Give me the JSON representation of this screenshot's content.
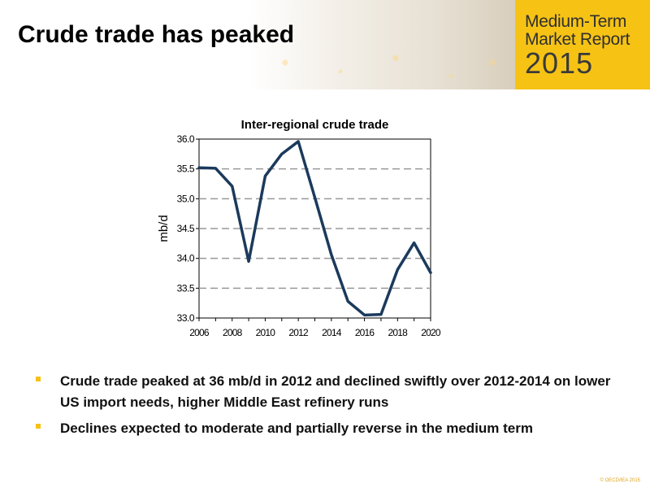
{
  "header": {
    "title": "Crude trade has peaked",
    "logo": {
      "line1": "Medium-Term",
      "line2": "Market Report",
      "line3": "2015"
    }
  },
  "colors": {
    "accent": "#f6c315",
    "series": "#1b3a5c",
    "grid": "#999999"
  },
  "chart_data": {
    "type": "line",
    "title": "Inter-regional crude trade",
    "xlabel": "",
    "ylabel": "mb/d",
    "xlim": [
      2006,
      2020
    ],
    "ylim": [
      33.0,
      36.0
    ],
    "grid": "horizontal dashed",
    "xticks": [
      "2006",
      "2008",
      "2010",
      "2012",
      "2014",
      "2016",
      "2018",
      "2020"
    ],
    "yticks": [
      "33.0",
      "33.5",
      "34.0",
      "34.5",
      "35.0",
      "35.5",
      "36.0"
    ],
    "x": [
      2006,
      2007,
      2008,
      2009,
      2010,
      2011,
      2012,
      2013,
      2014,
      2015,
      2016,
      2017,
      2018,
      2019,
      2020
    ],
    "values": [
      35.52,
      35.51,
      35.21,
      33.95,
      35.38,
      35.75,
      35.96,
      35.02,
      34.06,
      33.28,
      33.05,
      33.06,
      33.81,
      34.26,
      33.76
    ]
  },
  "bullets": [
    "Crude trade peaked at 36 mb/d in 2012 and declined swiftly over 2012-2014 on lower US import needs, higher  Middle East refinery runs",
    "Declines expected to moderate and partially reverse in the medium term"
  ],
  "footer": {
    "copyright": "© OECD/IEA 2015"
  }
}
